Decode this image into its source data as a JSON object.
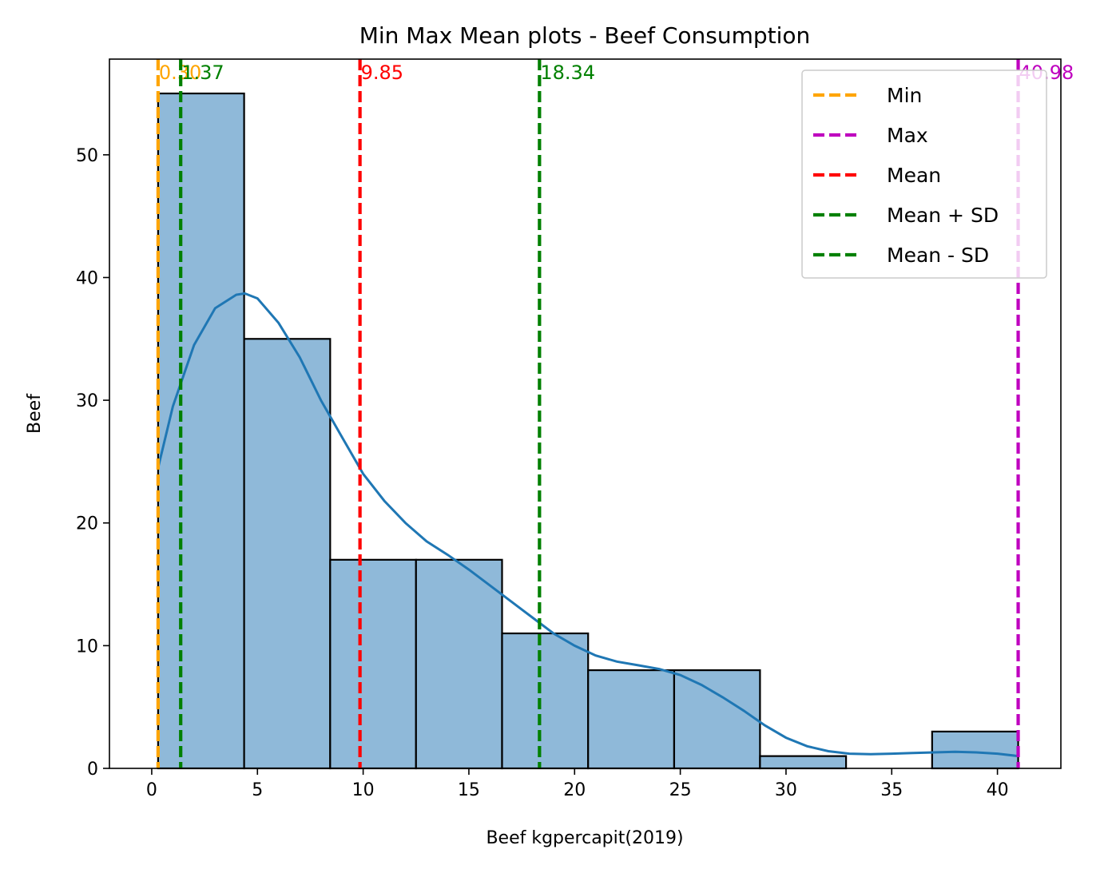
{
  "chart_data": {
    "type": "bar",
    "title": "Min Max Mean plots - Beef Consumption",
    "xlabel": "Beef kgpercapit(2019)",
    "ylabel": "Beef",
    "xlim": [
      -2.0,
      43.0
    ],
    "ylim": [
      0,
      57.8
    ],
    "xticks": [
      0,
      5,
      10,
      15,
      20,
      25,
      30,
      35,
      40
    ],
    "yticks": [
      0,
      10,
      20,
      30,
      40,
      50
    ],
    "grid": false,
    "legend_position": "top-right",
    "bins": [
      {
        "left": 0.3,
        "right": 4.37,
        "count": 55
      },
      {
        "left": 4.37,
        "right": 8.44,
        "count": 35
      },
      {
        "left": 8.44,
        "right": 12.5,
        "count": 17
      },
      {
        "left": 12.5,
        "right": 16.57,
        "count": 17
      },
      {
        "left": 16.57,
        "right": 20.64,
        "count": 11
      },
      {
        "left": 20.64,
        "right": 24.71,
        "count": 8
      },
      {
        "left": 24.71,
        "right": 28.77,
        "count": 8
      },
      {
        "left": 28.77,
        "right": 32.84,
        "count": 1
      },
      {
        "left": 32.84,
        "right": 36.91,
        "count": 0
      },
      {
        "left": 36.91,
        "right": 40.98,
        "count": 3
      }
    ],
    "kde": {
      "x": [
        0.3,
        1.0,
        2.0,
        3.0,
        4.0,
        4.4,
        5.0,
        6.0,
        7.0,
        8.0,
        9.0,
        10.0,
        11.0,
        12.0,
        13.0,
        14.0,
        15.0,
        16.0,
        17.0,
        18.0,
        19.0,
        20.0,
        21.0,
        22.0,
        23.0,
        24.0,
        25.0,
        26.0,
        27.0,
        28.0,
        29.0,
        30.0,
        31.0,
        32.0,
        33.0,
        34.0,
        35.0,
        36.0,
        37.0,
        38.0,
        39.0,
        40.0,
        40.98
      ],
      "y": [
        24.5,
        29.5,
        34.5,
        37.5,
        38.6,
        38.7,
        38.3,
        36.3,
        33.5,
        30.0,
        27.0,
        24.0,
        21.8,
        20.0,
        18.5,
        17.4,
        16.2,
        14.9,
        13.6,
        12.3,
        11.0,
        10.0,
        9.2,
        8.7,
        8.4,
        8.1,
        7.6,
        6.8,
        5.8,
        4.7,
        3.5,
        2.5,
        1.8,
        1.4,
        1.2,
        1.15,
        1.2,
        1.25,
        1.3,
        1.35,
        1.3,
        1.2,
        1.0
      ]
    },
    "reference_lines": [
      {
        "name": "Min",
        "value": 0.3,
        "label": "0.30",
        "color": "#ffa500"
      },
      {
        "name": "Max",
        "value": 40.98,
        "label": "40.98",
        "color": "#bf00bf"
      },
      {
        "name": "Mean",
        "value": 9.85,
        "label": "9.85",
        "color": "#ff0000"
      },
      {
        "name": "Mean + SD",
        "value": 18.34,
        "label": "18.34",
        "color": "#008000"
      },
      {
        "name": "Mean - SD",
        "value": 1.37,
        "label": "1.37",
        "color": "#008000"
      }
    ],
    "bar_fill": "#8fb9d9",
    "bar_edge": "#000000",
    "kde_color": "#1f77b4"
  }
}
